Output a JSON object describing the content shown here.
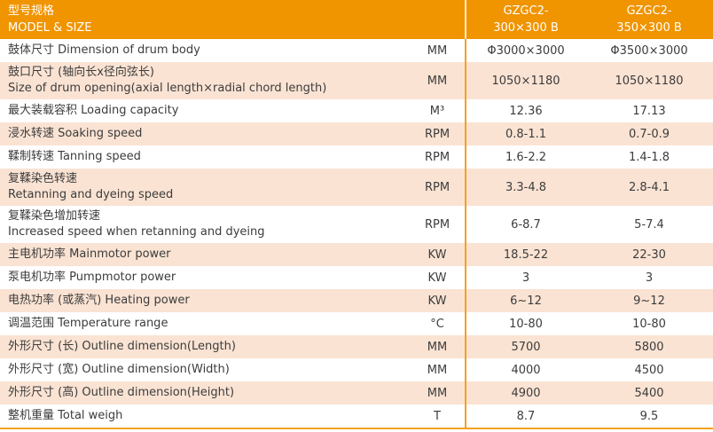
{
  "colors": {
    "header_bg": "#f09400",
    "header_text": "#ffffff",
    "row_alt_bg": "#fae3d3",
    "row_bg": "#ffffff",
    "divider": "#f6a01e",
    "text": "#3c3c3c"
  },
  "header": {
    "title_zh": "型号规格",
    "title_en": "MODEL & SIZE",
    "columns": [
      {
        "line1": "GZGC2-",
        "line2": "300×300 B"
      },
      {
        "line1": "GZGC2-",
        "line2": "350×300 B"
      }
    ]
  },
  "rows": [
    {
      "zh": "鼓体尺寸",
      "en": "Dimension of drum body",
      "unit": "MM",
      "v1": "Φ3000×3000",
      "v2": "Φ3500×3000"
    },
    {
      "zh": "鼓口尺寸 (轴向长x径向弦长)",
      "en": "Size of drum opening(axial length×radial chord length)",
      "unit": "MM",
      "v1": "1050×1180",
      "v2": "1050×1180"
    },
    {
      "zh": "最大装载容积",
      "en": "Loading capacity",
      "unit": "M³",
      "v1": "12.36",
      "v2": "17.13"
    },
    {
      "zh": "浸水转速",
      "en": "Soaking speed",
      "unit": "RPM",
      "v1": "0.8-1.1",
      "v2": "0.7-0.9"
    },
    {
      "zh": "鞣制转速",
      "en": "Tanning speed",
      "unit": "RPM",
      "v1": "1.6-2.2",
      "v2": "1.4-1.8"
    },
    {
      "zh": "复鞣染色转速",
      "en": "Retanning and dyeing speed",
      "unit": "RPM",
      "v1": "3.3-4.8",
      "v2": "2.8-4.1"
    },
    {
      "zh": "复鞣染色增加转速",
      "en": "Increased speed when retanning and dyeing",
      "unit": "RPM",
      "v1": "6-8.7",
      "v2": "5-7.4"
    },
    {
      "zh": "主电机功率",
      "en": "Mainmotor power",
      "unit": "KW",
      "v1": "18.5-22",
      "v2": "22-30"
    },
    {
      "zh": "泵电机功率",
      "en": "Pumpmotor power",
      "unit": "KW",
      "v1": "3",
      "v2": "3"
    },
    {
      "zh": "电热功率 (或蒸汽)",
      "en": "Heating power",
      "unit": "KW",
      "v1": "6~12",
      "v2": "9~12"
    },
    {
      "zh": "调温范围",
      "en": "Temperature range",
      "unit": "°C",
      "v1": "10-80",
      "v2": "10-80"
    },
    {
      "zh": "外形尺寸 (长)",
      "en": "Outline dimension(Length)",
      "unit": "MM",
      "v1": "5700",
      "v2": "5800"
    },
    {
      "zh": "外形尺寸 (宽)",
      "en": "Outline dimension(Width)",
      "unit": "MM",
      "v1": "4000",
      "v2": "4500"
    },
    {
      "zh": "外形尺寸 (高)",
      "en": "Outline dimension(Height)",
      "unit": "MM",
      "v1": "4900",
      "v2": "5400"
    },
    {
      "zh": "整机重量",
      "en": "Total weigh",
      "unit": "T",
      "v1": "8.7",
      "v2": "9.5"
    }
  ]
}
